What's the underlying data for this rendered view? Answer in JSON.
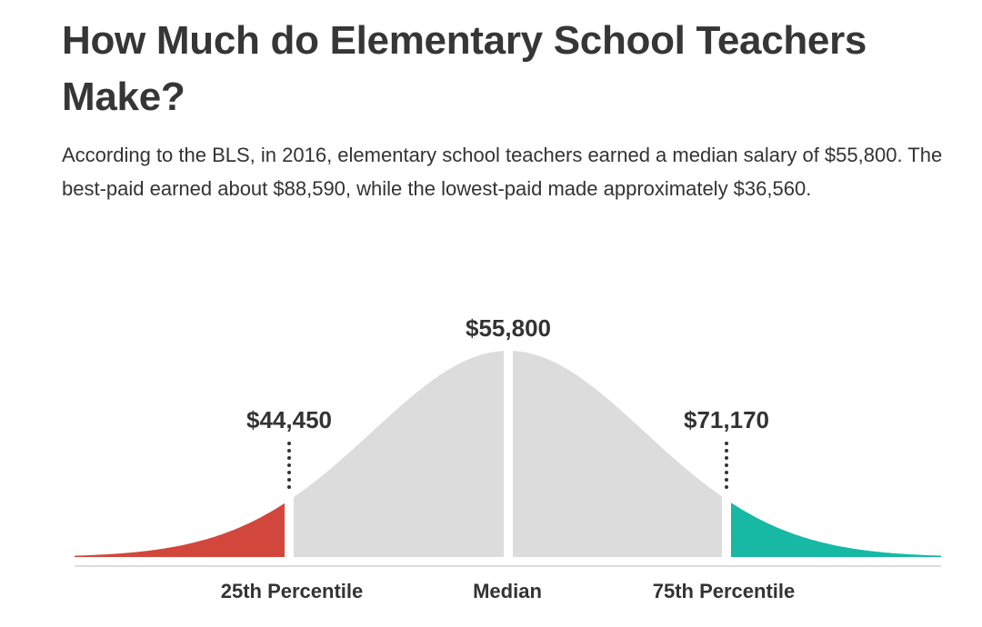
{
  "page": {
    "title": "How Much do Elementary School Teachers Make?",
    "intro": "According to the BLS, in 2016, elementary school teachers earned a median salary of $55,800. The best-paid earned about $88,590, while the lowest-paid made approximately $36,560."
  },
  "chart_data": {
    "type": "area",
    "title": "",
    "distribution": "bell-curve",
    "markers": [
      {
        "label": "25th Percentile",
        "value_label": "$44,450",
        "value": 44450
      },
      {
        "label": "Median",
        "value_label": "$55,800",
        "value": 55800
      },
      {
        "label": "75th Percentile",
        "value_label": "$71,170",
        "value": 71170
      }
    ],
    "regions": [
      {
        "name": "lowest 25%",
        "color": "#d2473b"
      },
      {
        "name": "middle 50%",
        "color": "#dcdcdc"
      },
      {
        "name": "top 25%",
        "color": "#17b8a4"
      }
    ],
    "axis_color": "#dddddd",
    "grid": false,
    "legend": "none"
  }
}
